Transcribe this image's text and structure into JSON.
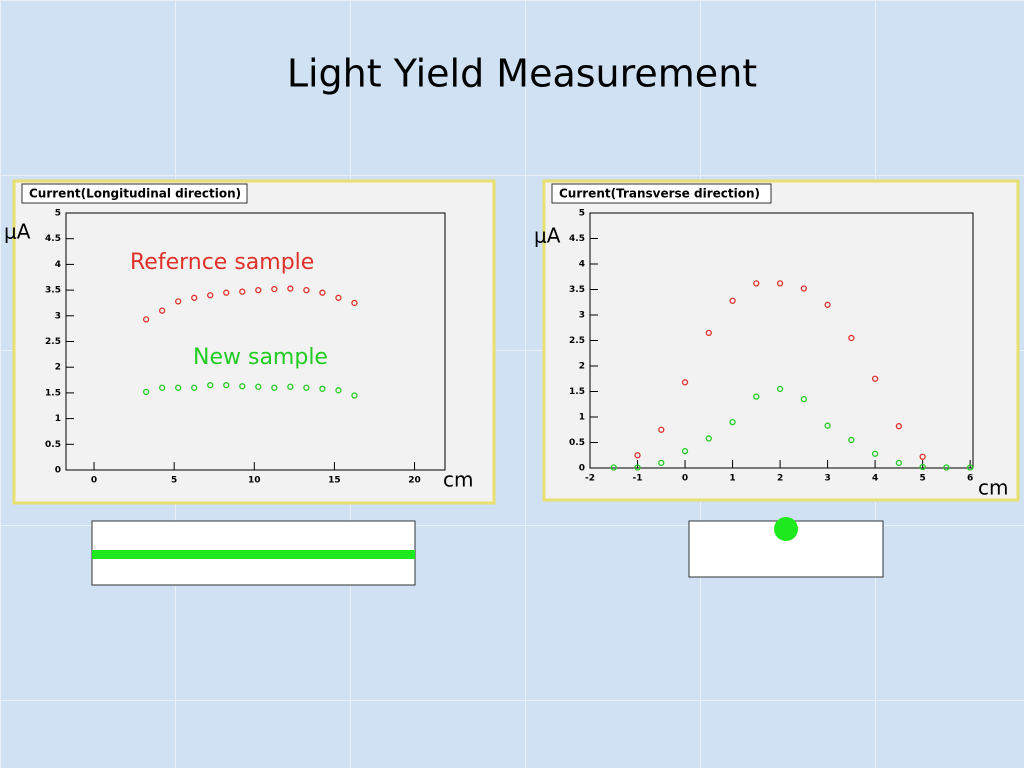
{
  "title": "Light Yield Measurement",
  "chart_data": [
    {
      "type": "scatter",
      "title": "Current(Longitudinal direction)",
      "ylabel": "μA",
      "xlabel": "cm",
      "xlim": [
        -1.75,
        21.9
      ],
      "xticks": [
        0,
        5,
        10,
        15,
        20
      ],
      "ylim": [
        0,
        5
      ],
      "yticks": [
        0,
        0.5,
        1,
        1.5,
        2,
        2.5,
        3,
        3.5,
        4,
        4.5,
        5
      ],
      "series": [
        {
          "name": "Refernce sample",
          "color": "#e0302a",
          "x": [
            3.25,
            4.25,
            5.25,
            6.25,
            7.25,
            8.25,
            9.25,
            10.25,
            11.25,
            12.25,
            13.25,
            14.25,
            15.25,
            16.25
          ],
          "values": [
            2.93,
            3.1,
            3.28,
            3.35,
            3.4,
            3.45,
            3.47,
            3.5,
            3.52,
            3.53,
            3.5,
            3.45,
            3.35,
            3.25
          ]
        },
        {
          "name": "New sample",
          "color": "#22cc22",
          "x": [
            3.25,
            4.25,
            5.25,
            6.25,
            7.25,
            8.25,
            9.25,
            10.25,
            11.25,
            12.25,
            13.25,
            14.25,
            15.25,
            16.25
          ],
          "values": [
            1.52,
            1.6,
            1.6,
            1.6,
            1.65,
            1.65,
            1.63,
            1.62,
            1.6,
            1.62,
            1.6,
            1.58,
            1.55,
            1.45
          ]
        }
      ]
    },
    {
      "type": "scatter",
      "title": "Current(Transverse direction)",
      "ylabel": "μA",
      "xlabel": "cm",
      "xlim": [
        -2,
        6.06
      ],
      "xticks": [
        -2,
        -1,
        0,
        1,
        2,
        3,
        4,
        5,
        6
      ],
      "ylim": [
        0,
        5
      ],
      "yticks": [
        0,
        0.5,
        1,
        1.5,
        2,
        2.5,
        3,
        3.5,
        4,
        4.5,
        5
      ],
      "series": [
        {
          "color": "#e0302a",
          "x": [
            -1,
            -0.5,
            0,
            0.5,
            1,
            1.5,
            2,
            2.5,
            3,
            3.5,
            4,
            4.5,
            5
          ],
          "values": [
            0.25,
            0.75,
            1.68,
            2.65,
            3.28,
            3.62,
            3.62,
            3.52,
            3.2,
            2.55,
            1.75,
            0.82,
            0.22
          ]
        },
        {
          "color": "#22cc22",
          "x": [
            -1.5,
            -1,
            -0.5,
            0,
            0.5,
            1,
            1.5,
            2,
            2.5,
            3,
            3.5,
            4,
            4.5,
            5,
            5.5,
            6
          ],
          "values": [
            0.01,
            0.01,
            0.1,
            0.33,
            0.58,
            0.9,
            1.4,
            1.55,
            1.35,
            0.83,
            0.55,
            0.28,
            0.1,
            0.02,
            0.01,
            0.01
          ]
        }
      ]
    }
  ]
}
